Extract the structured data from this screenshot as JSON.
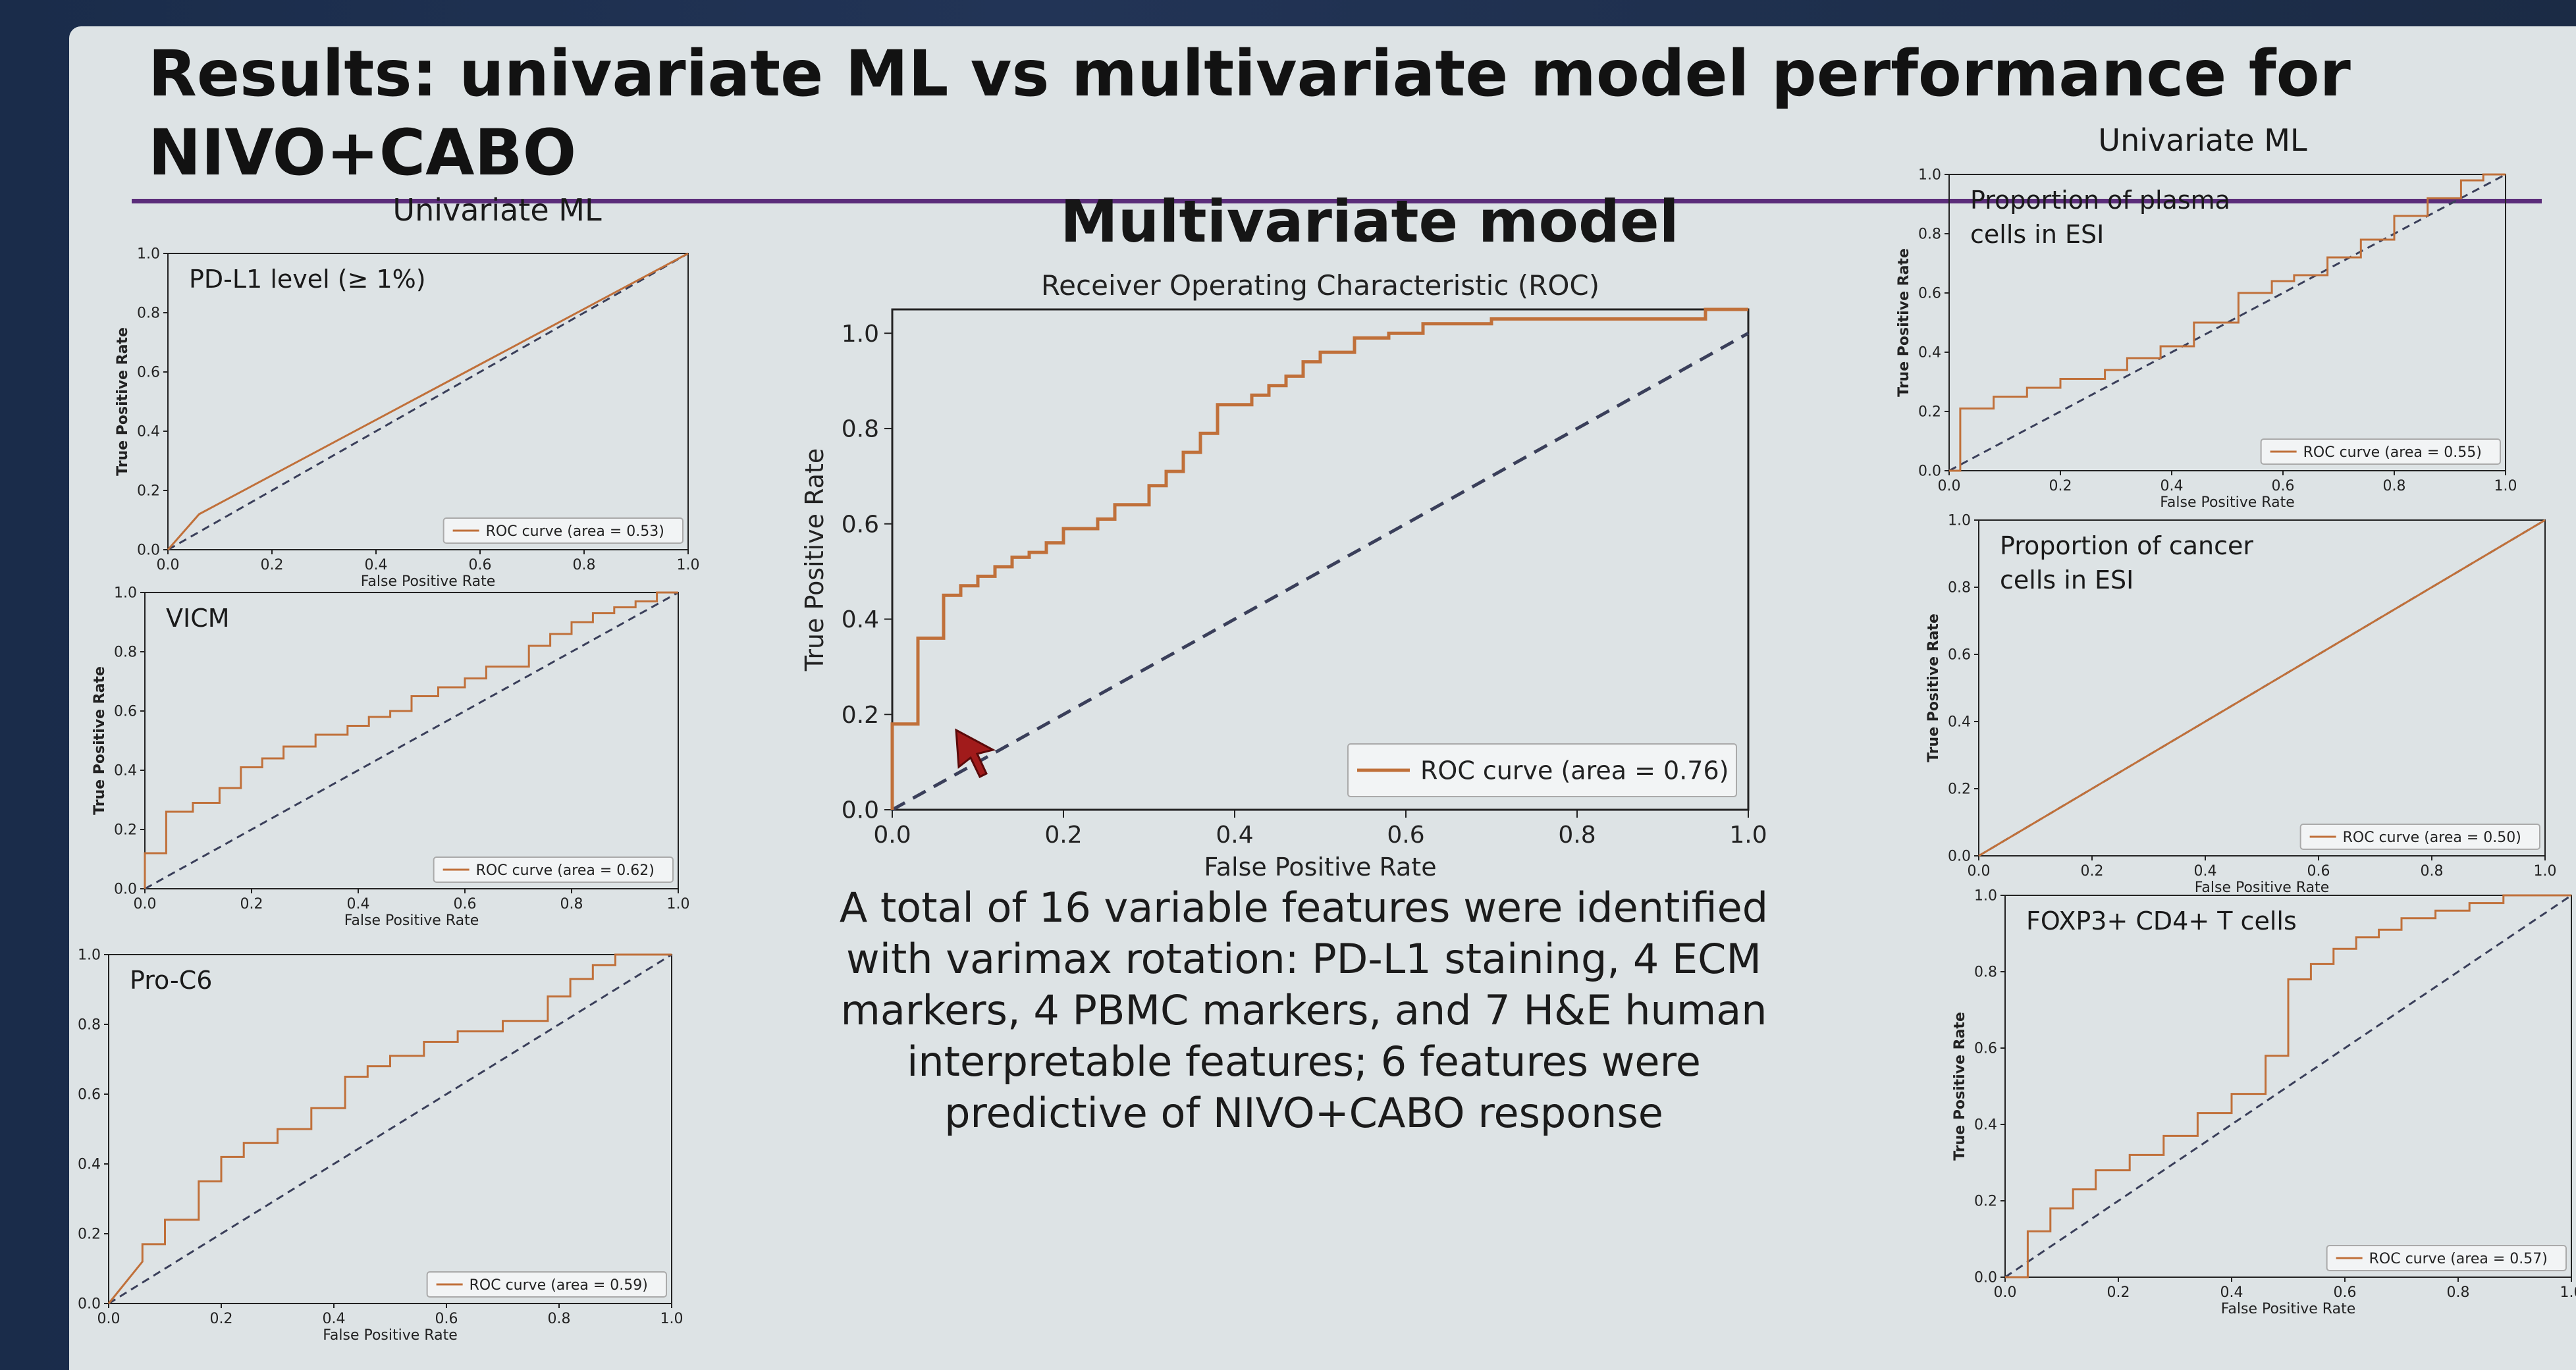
{
  "slide": {
    "title": "Results: univariate ML vs multivariate model performance for NIVO+CABO",
    "left_heading": "Univariate ML",
    "right_heading": "Univariate ML",
    "center_heading": "Multivariate model",
    "summary": "A total of 16 variable features were identified with varimax rotation: PD-L1 staining, 4 ECM markers, 4 PBMC markers, and 7 H&E human interpretable features; 6 features were predictive of NIVO+CABO response"
  },
  "colors": {
    "roc": "#c0703a",
    "chance": "#3a3f5a",
    "title_rule": "#5b2d7a"
  },
  "chart_data": [
    {
      "id": "multivariate",
      "type": "line",
      "title": "Receiver Operating Characteristic (ROC)",
      "xlabel": "False Positive Rate",
      "ylabel": "True Positive Rate",
      "xlim": [
        0,
        1.0
      ],
      "ylim": [
        0,
        1.05
      ],
      "xticks": [
        "0.0",
        "0.2",
        "0.4",
        "0.6",
        "0.8",
        "1.0"
      ],
      "yticks": [
        "0.0",
        "0.2",
        "0.4",
        "0.6",
        "0.8",
        "1.0"
      ],
      "legend": "ROC curve (area = 0.76)",
      "legend_position": "lower-right",
      "grid": false,
      "series": [
        {
          "x": [
            0,
            0,
            0.03,
            0.03,
            0.06,
            0.06,
            0.08,
            0.08,
            0.1,
            0.1,
            0.12,
            0.12,
            0.14,
            0.14,
            0.16,
            0.16,
            0.18,
            0.18,
            0.2,
            0.2,
            0.24,
            0.24,
            0.26,
            0.26,
            0.3,
            0.3,
            0.32,
            0.32,
            0.34,
            0.34,
            0.36,
            0.36,
            0.38,
            0.38,
            0.42,
            0.42,
            0.44,
            0.44,
            0.46,
            0.46,
            0.48,
            0.48,
            0.5,
            0.5,
            0.54,
            0.54,
            0.58,
            0.58,
            0.62,
            0.62,
            0.7,
            0.7,
            0.95,
            0.95,
            1.0
          ],
          "y": [
            0,
            0.18,
            0.18,
            0.36,
            0.36,
            0.45,
            0.45,
            0.47,
            0.47,
            0.49,
            0.49,
            0.51,
            0.51,
            0.53,
            0.53,
            0.54,
            0.54,
            0.56,
            0.56,
            0.59,
            0.59,
            0.61,
            0.61,
            0.64,
            0.64,
            0.68,
            0.68,
            0.71,
            0.71,
            0.75,
            0.75,
            0.79,
            0.79,
            0.85,
            0.85,
            0.87,
            0.87,
            0.89,
            0.89,
            0.91,
            0.91,
            0.94,
            0.94,
            0.96,
            0.96,
            0.99,
            0.99,
            1.0,
            1.0,
            1.02,
            1.02,
            1.03,
            1.03,
            1.05,
            1.05
          ]
        }
      ]
    },
    {
      "id": "pdl1",
      "type": "line",
      "title": "PD-L1 level (≥ 1%)",
      "xlabel": "False Positive Rate",
      "ylabel": "True Positive Rate",
      "xlim": [
        0,
        1.0
      ],
      "ylim": [
        0,
        1.0
      ],
      "xticks": [
        "0.0",
        "0.2",
        "0.4",
        "0.6",
        "0.8",
        "1.0"
      ],
      "yticks": [
        "0.0",
        "0.2",
        "0.4",
        "0.6",
        "0.8",
        "1.0"
      ],
      "legend": "ROC curve (area = 0.53)",
      "legend_position": "lower-right",
      "series": [
        {
          "x": [
            0,
            0.06,
            1.0
          ],
          "y": [
            0,
            0.12,
            1.0
          ]
        }
      ]
    },
    {
      "id": "vicm",
      "type": "line",
      "title": "VICM",
      "xlabel": "False Positive Rate",
      "ylabel": "True Positive Rate",
      "xlim": [
        0,
        1.0
      ],
      "ylim": [
        0,
        1.0
      ],
      "xticks": [
        "0.0",
        "0.2",
        "0.4",
        "0.6",
        "0.8",
        "1.0"
      ],
      "yticks": [
        "0.0",
        "0.2",
        "0.4",
        "0.6",
        "0.8",
        "1.0"
      ],
      "legend": "ROC curve (area = 0.62)",
      "legend_position": "lower-right",
      "series": [
        {
          "x": [
            0,
            0,
            0.04,
            0.04,
            0.09,
            0.09,
            0.14,
            0.14,
            0.18,
            0.18,
            0.22,
            0.22,
            0.26,
            0.26,
            0.32,
            0.32,
            0.38,
            0.38,
            0.42,
            0.42,
            0.46,
            0.46,
            0.5,
            0.5,
            0.55,
            0.55,
            0.6,
            0.6,
            0.64,
            0.64,
            0.72,
            0.72,
            0.76,
            0.76,
            0.8,
            0.8,
            0.84,
            0.84,
            0.88,
            0.88,
            0.92,
            0.92,
            0.96,
            0.96,
            1.0
          ],
          "y": [
            0,
            0.12,
            0.12,
            0.26,
            0.26,
            0.29,
            0.29,
            0.34,
            0.34,
            0.41,
            0.41,
            0.44,
            0.44,
            0.48,
            0.48,
            0.52,
            0.52,
            0.55,
            0.55,
            0.58,
            0.58,
            0.6,
            0.6,
            0.65,
            0.65,
            0.68,
            0.68,
            0.71,
            0.71,
            0.75,
            0.75,
            0.82,
            0.82,
            0.86,
            0.86,
            0.9,
            0.9,
            0.93,
            0.93,
            0.95,
            0.95,
            0.97,
            0.97,
            1.0,
            1.0
          ]
        }
      ]
    },
    {
      "id": "proc6",
      "type": "line",
      "title": "Pro-C6",
      "xlabel": "False Positive Rate",
      "ylabel": "True Positive Rate",
      "xlim": [
        0,
        1.0
      ],
      "ylim": [
        0,
        1.0
      ],
      "xticks": [
        "0.0",
        "0.2",
        "0.4",
        "0.6",
        "0.8",
        "1.0"
      ],
      "yticks": [
        "0.0",
        "0.2",
        "0.4",
        "0.6",
        "0.8",
        "1.0"
      ],
      "legend": "ROC curve (area = 0.59)",
      "legend_position": "lower-right",
      "series": [
        {
          "x": [
            0,
            0.06,
            0.06,
            0.1,
            0.1,
            0.16,
            0.16,
            0.2,
            0.2,
            0.24,
            0.24,
            0.3,
            0.3,
            0.36,
            0.36,
            0.42,
            0.42,
            0.46,
            0.46,
            0.5,
            0.5,
            0.56,
            0.56,
            0.62,
            0.62,
            0.7,
            0.7,
            0.78,
            0.78,
            0.82,
            0.82,
            0.86,
            0.86,
            0.9,
            0.9,
            1.0
          ],
          "y": [
            0,
            0.12,
            0.17,
            0.17,
            0.24,
            0.24,
            0.35,
            0.35,
            0.42,
            0.42,
            0.46,
            0.46,
            0.5,
            0.5,
            0.56,
            0.56,
            0.65,
            0.65,
            0.68,
            0.68,
            0.71,
            0.71,
            0.75,
            0.75,
            0.78,
            0.78,
            0.81,
            0.81,
            0.88,
            0.88,
            0.93,
            0.93,
            0.97,
            0.97,
            1.0,
            1.0
          ]
        }
      ]
    },
    {
      "id": "plasma",
      "type": "line",
      "title": "Proportion of plasma cells in ESI",
      "xlabel": "False Positive Rate",
      "ylabel": "True Positive Rate",
      "xlim": [
        0,
        1.0
      ],
      "ylim": [
        0,
        1.0
      ],
      "xticks": [
        "0.0",
        "0.2",
        "0.4",
        "0.6",
        "0.8",
        "1.0"
      ],
      "yticks": [
        "0.0",
        "0.2",
        "0.4",
        "0.6",
        "0.8",
        "1.0"
      ],
      "legend": "ROC curve (area = 0.55)",
      "legend_position": "lower-right",
      "series": [
        {
          "x": [
            0,
            0.02,
            0.02,
            0.08,
            0.08,
            0.14,
            0.14,
            0.2,
            0.2,
            0.28,
            0.28,
            0.32,
            0.32,
            0.38,
            0.38,
            0.44,
            0.44,
            0.52,
            0.52,
            0.58,
            0.58,
            0.62,
            0.62,
            0.68,
            0.68,
            0.74,
            0.74,
            0.8,
            0.8,
            0.86,
            0.86,
            0.92,
            0.92,
            0.96,
            0.96,
            1.0
          ],
          "y": [
            0,
            0,
            0.21,
            0.21,
            0.25,
            0.25,
            0.28,
            0.28,
            0.31,
            0.31,
            0.34,
            0.34,
            0.38,
            0.38,
            0.42,
            0.42,
            0.5,
            0.5,
            0.6,
            0.6,
            0.64,
            0.64,
            0.66,
            0.66,
            0.72,
            0.72,
            0.78,
            0.78,
            0.86,
            0.86,
            0.92,
            0.92,
            0.98,
            0.98,
            1.0,
            1.0
          ]
        }
      ]
    },
    {
      "id": "cancer",
      "type": "line",
      "title": "Proportion of cancer cells in ESI",
      "xlabel": "False Positive Rate",
      "ylabel": "True Positive Rate",
      "xlim": [
        0,
        1.0
      ],
      "ylim": [
        0,
        1.0
      ],
      "xticks": [
        "0.0",
        "0.2",
        "0.4",
        "0.6",
        "0.8",
        "1.0"
      ],
      "yticks": [
        "0.0",
        "0.2",
        "0.4",
        "0.6",
        "0.8",
        "1.0"
      ],
      "legend": "ROC curve (area = 0.50)",
      "legend_position": "lower-right",
      "series": [
        {
          "x": [
            0,
            1.0
          ],
          "y": [
            0,
            1.0
          ]
        }
      ]
    },
    {
      "id": "foxp3",
      "type": "line",
      "title": "FOXP3+ CD4+ T cells",
      "xlabel": "False Positive Rate",
      "ylabel": "True Positive Rate",
      "xlim": [
        0,
        1.0
      ],
      "ylim": [
        0,
        1.0
      ],
      "xticks": [
        "0.0",
        "0.2",
        "0.4",
        "0.6",
        "0.8",
        "1.0"
      ],
      "yticks": [
        "0.0",
        "0.2",
        "0.4",
        "0.6",
        "0.8",
        "1.0"
      ],
      "legend": "ROC curve (area = 0.57)",
      "legend_position": "lower-right",
      "series": [
        {
          "x": [
            0,
            0.04,
            0.04,
            0.08,
            0.08,
            0.12,
            0.12,
            0.16,
            0.16,
            0.22,
            0.22,
            0.28,
            0.28,
            0.34,
            0.34,
            0.4,
            0.4,
            0.46,
            0.46,
            0.5,
            0.5,
            0.54,
            0.54,
            0.58,
            0.58,
            0.62,
            0.62,
            0.66,
            0.66,
            0.7,
            0.7,
            0.76,
            0.76,
            0.82,
            0.82,
            0.88,
            0.88,
            0.94,
            0.94,
            1.0
          ],
          "y": [
            0,
            0,
            0.12,
            0.12,
            0.18,
            0.18,
            0.23,
            0.23,
            0.28,
            0.28,
            0.32,
            0.32,
            0.37,
            0.37,
            0.43,
            0.43,
            0.48,
            0.48,
            0.58,
            0.58,
            0.78,
            0.78,
            0.82,
            0.82,
            0.86,
            0.86,
            0.89,
            0.89,
            0.91,
            0.91,
            0.94,
            0.94,
            0.96,
            0.96,
            0.98,
            0.98,
            1.0,
            1.0,
            1.0,
            1.0
          ]
        }
      ]
    }
  ]
}
